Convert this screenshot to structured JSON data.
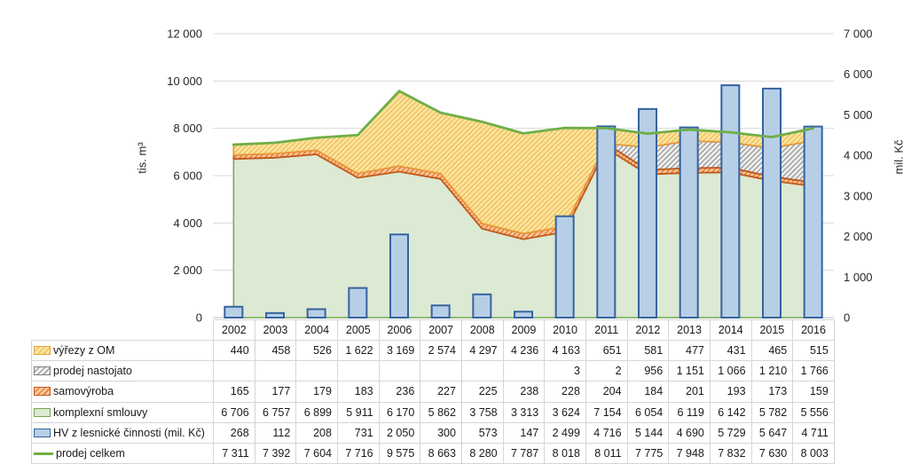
{
  "chart": {
    "left_axis": {
      "title": "tis. m³",
      "min": 0,
      "max": 12000,
      "step": 2000,
      "tick_labels": [
        "0",
        "2 000",
        "4 000",
        "6 000",
        "8 000",
        "10 000",
        "12 000"
      ]
    },
    "right_axis": {
      "title": "mil. Kč",
      "min": 0,
      "max": 7000,
      "step": 1000,
      "tick_labels": [
        "0",
        "1 000",
        "2 000",
        "3 000",
        "4 000",
        "5 000",
        "6 000",
        "7 000"
      ]
    }
  },
  "chart_data": {
    "type": "combo",
    "subtype": "stacked-area + bar + line",
    "categories": [
      2002,
      2003,
      2004,
      2005,
      2006,
      2007,
      2008,
      2009,
      2010,
      2011,
      2012,
      2013,
      2014,
      2015,
      2016
    ],
    "left_axis_range": [
      0,
      12000
    ],
    "right_axis_range": [
      0,
      7000
    ],
    "gridlines": "horizontal, every 2000 (left axis)",
    "legend_position": "table rows below chart (data table)",
    "stacked_area_series": [
      {
        "name": "komplexní smlouvy",
        "axis": "left",
        "stack": 1,
        "values": [
          6706,
          6757,
          6899,
          5911,
          6170,
          5862,
          3758,
          3313,
          3624,
          7154,
          6054,
          6119,
          6142,
          5782,
          5556
        ],
        "fill": "#dce9d3",
        "hatch": null,
        "border": "#73a94f"
      },
      {
        "name": "samovýroba",
        "axis": "left",
        "stack": 2,
        "values": [
          165,
          177,
          179,
          183,
          236,
          227,
          225,
          238,
          228,
          204,
          184,
          201,
          193,
          173,
          159
        ],
        "fill": "#f7cba4",
        "hatch": "#ed7d31",
        "border": "#c2591c"
      },
      {
        "name": "prodej nastojato",
        "axis": "left",
        "stack": 3,
        "values": [
          0,
          0,
          0,
          0,
          0,
          0,
          0,
          0,
          3,
          2,
          956,
          1151,
          1066,
          1210,
          1766
        ],
        "fill": "#f2f2f2",
        "hatch": "#a3a3a3",
        "border": "#808080"
      },
      {
        "name": "výřezy z OM",
        "axis": "left",
        "stack": 4,
        "values": [
          440,
          458,
          526,
          1622,
          3169,
          2574,
          4297,
          4236,
          4163,
          651,
          581,
          477,
          431,
          465,
          515
        ],
        "fill": "#fce6a2",
        "hatch": "#f1c262",
        "border": "#e89b3e"
      }
    ],
    "bar_series": {
      "name": "HV z lesnické činnosti (mil. Kč)",
      "axis": "right",
      "values": [
        268,
        112,
        208,
        731,
        2050,
        300,
        573,
        147,
        2499,
        4716,
        5144,
        4690,
        5729,
        5647,
        4711
      ],
      "fill": "#b7cfe6",
      "border": "#35639f"
    },
    "line_series": {
      "name": "prodej celkem",
      "axis": "left",
      "values": [
        7311,
        7392,
        7604,
        7716,
        9575,
        8663,
        8280,
        7787,
        8018,
        8011,
        7775,
        7948,
        7832,
        7630,
        8003
      ],
      "color": "#6fae49"
    }
  },
  "table": {
    "years": [
      "2002",
      "2003",
      "2004",
      "2005",
      "2006",
      "2007",
      "2008",
      "2009",
      "2010",
      "2011",
      "2012",
      "2013",
      "2014",
      "2015",
      "2016"
    ],
    "rows": [
      {
        "label": "výřezy z OM",
        "swatch": "hatch-yellow",
        "values": [
          "440",
          "458",
          "526",
          "1 622",
          "3 169",
          "2 574",
          "4 297",
          "4 236",
          "4 163",
          "651",
          "581",
          "477",
          "431",
          "465",
          "515"
        ]
      },
      {
        "label": "prodej nastojato",
        "swatch": "hatch-gray",
        "values": [
          "",
          "",
          "",
          "",
          "",
          "",
          "",
          "",
          "3",
          "2",
          "956",
          "1 151",
          "1 066",
          "1 210",
          "1 766"
        ]
      },
      {
        "label": "samovýroba",
        "swatch": "hatch-orange",
        "values": [
          "165",
          "177",
          "179",
          "183",
          "236",
          "227",
          "225",
          "238",
          "228",
          "204",
          "184",
          "201",
          "193",
          "173",
          "159"
        ]
      },
      {
        "label": "komplexní smlouvy",
        "swatch": "solid-green",
        "values": [
          "6 706",
          "6 757",
          "6 899",
          "5 911",
          "6 170",
          "5 862",
          "3 758",
          "3 313",
          "3 624",
          "7 154",
          "6 054",
          "6 119",
          "6 142",
          "5 782",
          "5 556"
        ]
      },
      {
        "label": "HV z lesnické činnosti (mil. Kč)",
        "swatch": "solid-blue",
        "values": [
          "268",
          "112",
          "208",
          "731",
          "2 050",
          "300",
          "573",
          "147",
          "2 499",
          "4 716",
          "5 144",
          "4 690",
          "5 729",
          "5 647",
          "4 711"
        ]
      },
      {
        "label": "prodej celkem",
        "swatch": "line-green",
        "values": [
          "7 311",
          "7 392",
          "7 604",
          "7 716",
          "9 575",
          "8 663",
          "8 280",
          "7 787",
          "8 018",
          "8 011",
          "7 775",
          "7 948",
          "7 832",
          "7 630",
          "8 003"
        ]
      }
    ]
  },
  "colors": {
    "gridline": "#d9d9d9",
    "axis_line": "#bfbfbf",
    "table_border": "#d2d7dc",
    "text": "#262626",
    "background": "#ffffff"
  }
}
